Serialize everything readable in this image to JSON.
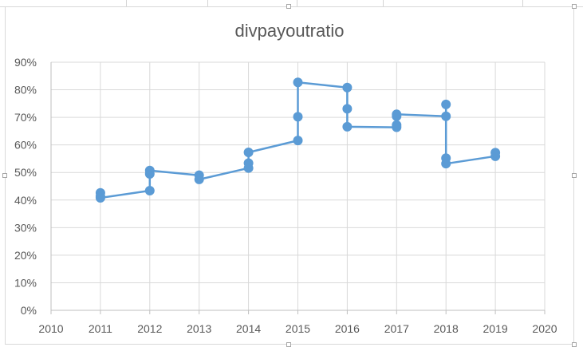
{
  "chart_data": {
    "type": "scatter",
    "title": "divpayoutratio",
    "xlabel": "",
    "ylabel": "",
    "xlim": [
      2010,
      2020
    ],
    "ylim": [
      0,
      0.9
    ],
    "x_ticks": [
      2010,
      2011,
      2012,
      2013,
      2014,
      2015,
      2016,
      2017,
      2018,
      2019,
      2020
    ],
    "y_ticks": [
      {
        "value": 0.0,
        "label": "0%"
      },
      {
        "value": 0.1,
        "label": "10%"
      },
      {
        "value": 0.2,
        "label": "20%"
      },
      {
        "value": 0.3,
        "label": "30%"
      },
      {
        "value": 0.4,
        "label": "40%"
      },
      {
        "value": 0.5,
        "label": "50%"
      },
      {
        "value": 0.6,
        "label": "60%"
      },
      {
        "value": 0.7,
        "label": "70%"
      },
      {
        "value": 0.8,
        "label": "80%"
      },
      {
        "value": 0.9,
        "label": "90%"
      }
    ],
    "grid": true,
    "legend": "none",
    "series_color": "#5b9bd5",
    "points": [
      {
        "x": 2011,
        "y": 0.426
      },
      {
        "x": 2011,
        "y": 0.414
      },
      {
        "x": 2011,
        "y": 0.408
      },
      {
        "x": 2012,
        "y": 0.434
      },
      {
        "x": 2012,
        "y": 0.495
      },
      {
        "x": 2012,
        "y": 0.507
      },
      {
        "x": 2013,
        "y": 0.49
      },
      {
        "x": 2013,
        "y": 0.475
      },
      {
        "x": 2014,
        "y": 0.516
      },
      {
        "x": 2014,
        "y": 0.534
      },
      {
        "x": 2014,
        "y": 0.573
      },
      {
        "x": 2015,
        "y": 0.616
      },
      {
        "x": 2015,
        "y": 0.702
      },
      {
        "x": 2015,
        "y": 0.827
      },
      {
        "x": 2016,
        "y": 0.808
      },
      {
        "x": 2016,
        "y": 0.731
      },
      {
        "x": 2016,
        "y": 0.666
      },
      {
        "x": 2017,
        "y": 0.664
      },
      {
        "x": 2017,
        "y": 0.672
      },
      {
        "x": 2017,
        "y": 0.704
      },
      {
        "x": 2017,
        "y": 0.711
      },
      {
        "x": 2018,
        "y": 0.704
      },
      {
        "x": 2018,
        "y": 0.747
      },
      {
        "x": 2018,
        "y": 0.552
      },
      {
        "x": 2018,
        "y": 0.532
      },
      {
        "x": 2019,
        "y": 0.559
      },
      {
        "x": 2019,
        "y": 0.572
      }
    ]
  }
}
